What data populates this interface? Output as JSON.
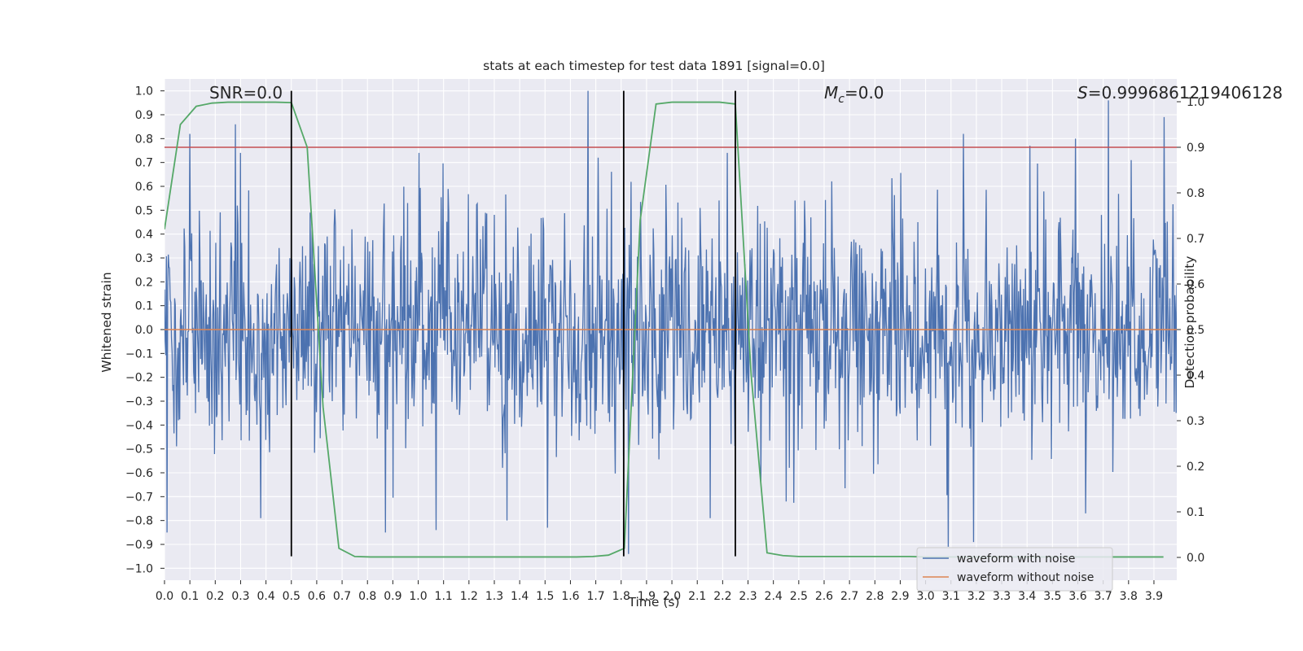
{
  "chart_data": {
    "type": "line",
    "title": "stats at each timestep for test data 1891 [signal=0.0]",
    "xlabel": "Time (s)",
    "ylabel_left": "Whitened strain",
    "ylabel_right": "Detection probability",
    "xlim": [
      0.0,
      3.99
    ],
    "ylim_left": [
      -1.05,
      1.05
    ],
    "ylim_right": [
      -0.05,
      1.05
    ],
    "xticks": [
      0.0,
      0.1,
      0.2,
      0.3,
      0.4,
      0.5,
      0.6,
      0.7,
      0.8,
      0.9,
      1.0,
      1.1,
      1.2,
      1.3,
      1.4,
      1.5,
      1.6,
      1.7,
      1.8,
      1.9,
      2.0,
      2.1,
      2.2,
      2.3,
      2.4,
      2.5,
      2.6,
      2.7,
      2.8,
      2.9,
      3.0,
      3.1,
      3.2,
      3.3,
      3.4,
      3.5,
      3.6,
      3.7,
      3.8,
      3.9
    ],
    "xtick_labels": [
      "0.0",
      "0.1",
      "0.2",
      "0.3",
      "0.4",
      "0.5",
      "0.6",
      "0.7",
      "0.8",
      "0.9",
      "1.0",
      "1.1",
      "1.2",
      "1.3",
      "1.4",
      "1.5",
      "1.6",
      "1.7",
      "1.8",
      "1.9",
      "2.0",
      "2.1",
      "2.2",
      "2.3",
      "2.4",
      "2.5",
      "2.6",
      "2.7",
      "2.8",
      "2.9",
      "3.0",
      "3.1",
      "3.2",
      "3.3",
      "3.4",
      "3.5",
      "3.6",
      "3.7",
      "3.8",
      "3.9"
    ],
    "yticks_left": [
      1.0,
      0.9,
      0.8,
      0.7,
      0.6,
      0.5,
      0.4,
      0.3,
      0.2,
      0.1,
      0.0,
      -0.1,
      -0.2,
      -0.3,
      -0.4,
      -0.5,
      -0.6,
      -0.7,
      -0.8,
      -0.9,
      -1.0
    ],
    "ytick_labels_left": [
      "1.0",
      "0.9",
      "0.8",
      "0.7",
      "0.6",
      "0.5",
      "0.4",
      "0.3",
      "0.2",
      "0.1",
      "0.0",
      "−0.1",
      "−0.2",
      "−0.3",
      "−0.4",
      "−0.5",
      "−0.6",
      "−0.7",
      "−0.8",
      "−0.9",
      "−1.0"
    ],
    "yticks_right": [
      1.0,
      0.9,
      0.8,
      0.7,
      0.6,
      0.5,
      0.4,
      0.3,
      0.2,
      0.1,
      0.0
    ],
    "ytick_labels_right": [
      "1.0",
      "0.9",
      "0.8",
      "0.7",
      "0.6",
      "0.5",
      "0.4",
      "0.3",
      "0.2",
      "0.1",
      "0.0"
    ],
    "series": [
      {
        "name": "waveform with noise",
        "color": "#4c72b0",
        "axis": "left",
        "kind": "noise",
        "n_points": 1600,
        "seed": 1891,
        "spikes": [
          {
            "t": 0.01,
            "v": -0.85
          },
          {
            "t": 0.1,
            "v": 0.82
          },
          {
            "t": 0.28,
            "v": 0.86
          },
          {
            "t": 0.38,
            "v": -0.79
          },
          {
            "t": 0.87,
            "v": -0.85
          },
          {
            "t": 1.07,
            "v": -0.84
          },
          {
            "t": 1.35,
            "v": -0.8
          },
          {
            "t": 1.51,
            "v": -0.83
          },
          {
            "t": 1.67,
            "v": 1.0
          },
          {
            "t": 1.71,
            "v": 0.72
          },
          {
            "t": 1.83,
            "v": -0.94
          },
          {
            "t": 2.15,
            "v": -0.79
          },
          {
            "t": 2.45,
            "v": -0.72
          },
          {
            "t": 3.09,
            "v": -0.91
          },
          {
            "t": 3.19,
            "v": -0.89
          },
          {
            "t": 3.15,
            "v": 0.82
          },
          {
            "t": 3.41,
            "v": 0.77
          },
          {
            "t": 3.59,
            "v": 0.8
          },
          {
            "t": 3.63,
            "v": -0.77
          },
          {
            "t": 3.72,
            "v": 0.96
          },
          {
            "t": 3.94,
            "v": 0.89
          },
          {
            "t": 3.81,
            "v": 0.71
          }
        ]
      },
      {
        "name": "waveform without noise",
        "color": "#dd8452",
        "axis": "left",
        "x": [
          0.0,
          3.99
        ],
        "y": [
          0.0,
          0.0
        ]
      },
      {
        "name": "detection probability",
        "color": "#55a868",
        "axis": "right",
        "x": [
          0.0,
          0.0625,
          0.125,
          0.1875,
          0.25,
          0.3125,
          0.375,
          0.4375,
          0.5,
          0.5625,
          0.625,
          0.6875,
          0.75,
          0.8125,
          0.875,
          0.9375,
          1.0,
          1.0625,
          1.125,
          1.1875,
          1.25,
          1.3125,
          1.375,
          1.4375,
          1.5,
          1.5625,
          1.625,
          1.6875,
          1.75,
          1.8125,
          1.875,
          1.9375,
          2.0,
          2.0625,
          2.125,
          2.1875,
          2.25,
          2.3125,
          2.375,
          2.4375,
          2.5,
          2.5625,
          2.625,
          2.6875,
          2.75,
          2.8125,
          2.875,
          2.9375,
          3.0,
          3.0625,
          3.125,
          3.1875,
          3.25,
          3.3125,
          3.375,
          3.4375,
          3.5,
          3.5625,
          3.625,
          3.6875,
          3.75,
          3.8125,
          3.875,
          3.9375
        ],
        "y": [
          0.72,
          0.95,
          0.99,
          0.997,
          0.999,
          0.999,
          0.999,
          0.999,
          0.998,
          0.9,
          0.33,
          0.02,
          0.002,
          0.001,
          0.001,
          0.001,
          0.001,
          0.001,
          0.001,
          0.001,
          0.001,
          0.001,
          0.001,
          0.001,
          0.001,
          0.001,
          0.001,
          0.002,
          0.005,
          0.02,
          0.74,
          0.995,
          0.999,
          0.999,
          0.999,
          0.999,
          0.995,
          0.4,
          0.01,
          0.004,
          0.002,
          0.002,
          0.002,
          0.002,
          0.002,
          0.002,
          0.002,
          0.002,
          0.001,
          0.001,
          0.001,
          0.001,
          0.001,
          0.001,
          0.001,
          0.001,
          0.001,
          0.001,
          0.001,
          0.001,
          0.001,
          0.001,
          0.001,
          0.001
        ]
      }
    ],
    "threshold": {
      "axis": "right",
      "value": 0.9,
      "color": "#c44e52"
    },
    "vlines": [
      {
        "x": 0.5,
        "color": "#000000",
        "ymin": -0.95,
        "ymax": 1.0
      },
      {
        "x": 1.81,
        "color": "#000000",
        "ymin": -0.95,
        "ymax": 1.0
      },
      {
        "x": 2.25,
        "color": "#000000",
        "ymin": -0.95,
        "ymax": 1.0
      }
    ],
    "annotations": {
      "snr": "SNR=0.0",
      "mc_symbol": "M",
      "mc_sub": "c",
      "mc_value": "=0.0",
      "s_symbol": "S",
      "s_value": "=0.9996861219406128"
    },
    "legend": {
      "location": "lower-right",
      "entries": [
        "waveform with noise",
        "waveform without noise"
      ]
    },
    "grid": true,
    "background": "#eaeaf2"
  }
}
